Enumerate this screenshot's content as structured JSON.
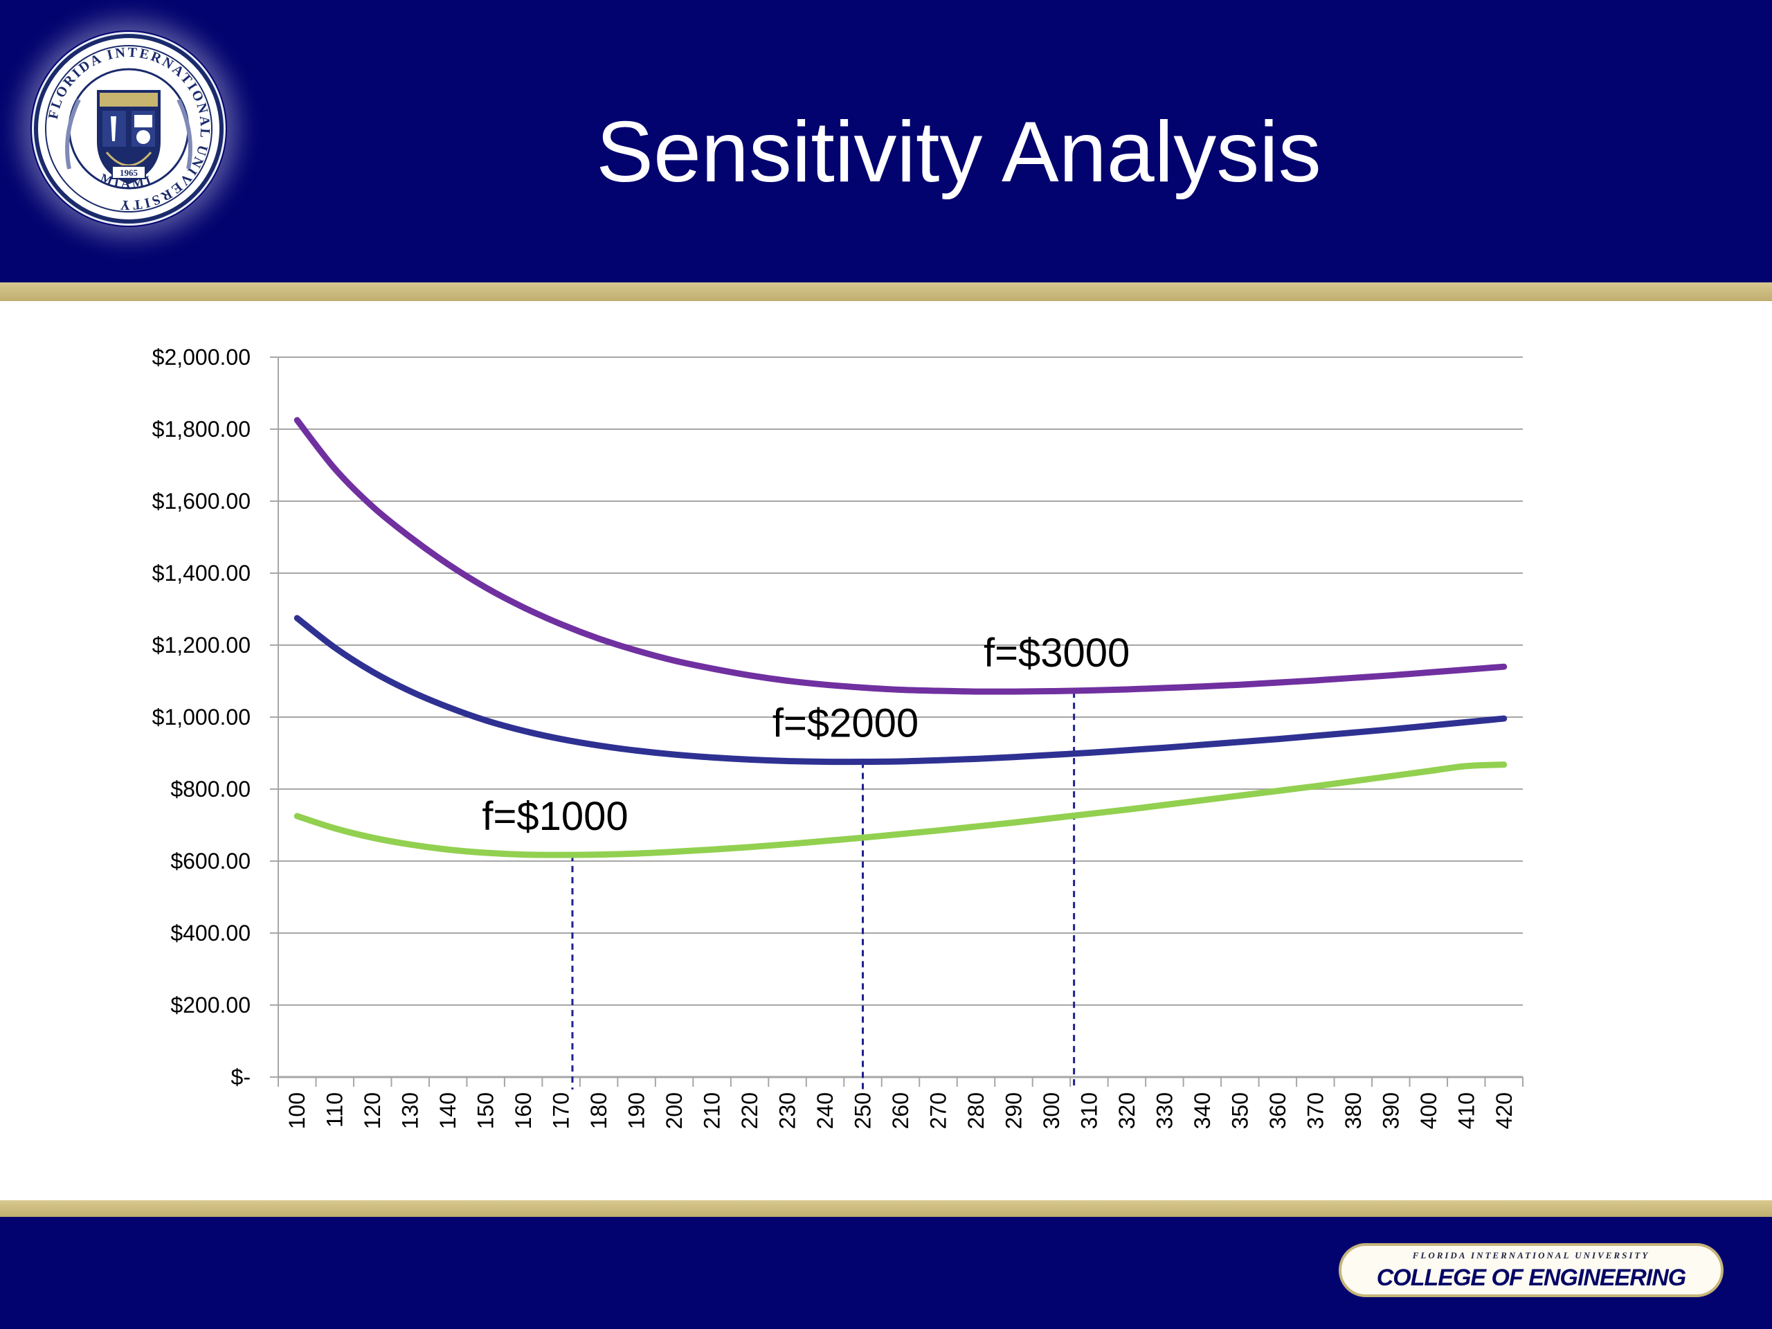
{
  "slide": {
    "title": "Sensitivity Analysis"
  },
  "seal": {
    "ring_text": "FLORIDA INTERNATIONAL UNIVERSITY",
    "bottom_text": "MIAMI",
    "year": "1965",
    "colors": {
      "navy": "#1a2a6b",
      "gold": "#c8b56f",
      "light": "#e8ecf5"
    }
  },
  "footer": {
    "university": "FLORIDA INTERNATIONAL UNIVERSITY",
    "college": "COLLEGE OF ENGINEERING"
  },
  "colors": {
    "header_navy": "#03036f",
    "gold_stripe": "#cdbb7c",
    "purple": "#7030a0",
    "blue": "#2e3192",
    "green": "#92d050",
    "grid": "#a6a6a6",
    "guide": "#1f1f8f"
  },
  "chart_data": {
    "type": "line",
    "x": [
      100,
      110,
      120,
      130,
      140,
      150,
      160,
      170,
      180,
      190,
      200,
      210,
      220,
      230,
      240,
      250,
      260,
      270,
      280,
      290,
      300,
      310,
      320,
      330,
      340,
      350,
      360,
      370,
      380,
      390,
      400,
      410,
      420
    ],
    "ylim": [
      0,
      2000
    ],
    "yticks": [
      0,
      200,
      400,
      600,
      800,
      1000,
      1200,
      1400,
      1600,
      1800,
      2000
    ],
    "ytick_labels": [
      "$-",
      "$200.00",
      "$400.00",
      "$600.00",
      "$800.00",
      "$1,000.00",
      "$1,200.00",
      "$1,400.00",
      "$1,600.00",
      "$1,800.00",
      "$2,000.00"
    ],
    "grid": true,
    "legend": "none",
    "series": [
      {
        "color": "#7030a0",
        "values": [
          1825,
          1690,
          1585,
          1500,
          1425,
          1360,
          1305,
          1258,
          1218,
          1185,
          1157,
          1135,
          1116,
          1101,
          1090,
          1082,
          1076,
          1073,
          1071,
          1071,
          1072,
          1074,
          1077,
          1081,
          1085,
          1090,
          1096,
          1102,
          1109,
          1116,
          1124,
          1132,
          1140
        ]
      },
      {
        "color": "#2e3192",
        "values": [
          1275,
          1193,
          1126,
          1072,
          1028,
          991,
          962,
          939,
          921,
          907,
          896,
          888,
          882,
          878,
          876,
          876,
          877,
          880,
          884,
          889,
          895,
          901,
          908,
          915,
          923,
          931,
          939,
          948,
          957,
          966,
          976,
          986,
          996
        ]
      },
      {
        "color": "#92d050",
        "values": [
          725,
          691,
          665,
          646,
          632,
          623,
          618,
          617,
          618,
          621,
          626,
          632,
          639,
          647,
          656,
          665,
          675,
          685,
          696,
          707,
          719,
          731,
          743,
          756,
          769,
          782,
          795,
          808,
          822,
          836,
          850,
          864,
          868
        ]
      }
    ],
    "annotations": [
      {
        "text": "f=$1000",
        "x": 173,
        "y": 617
      },
      {
        "text": "f=$2000",
        "x": 250,
        "y": 876
      },
      {
        "text": "f=$3000",
        "x": 306,
        "y": 1071
      }
    ]
  }
}
